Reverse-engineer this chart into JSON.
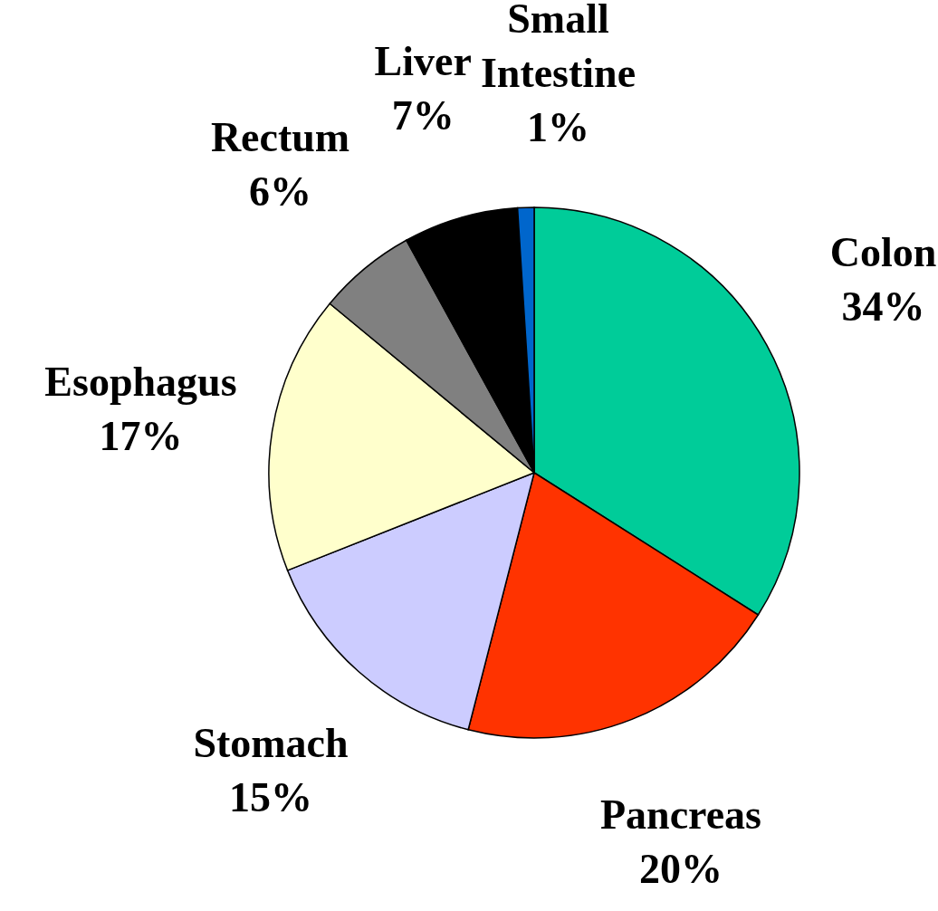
{
  "chart_data": {
    "type": "pie",
    "categories": [
      "Colon",
      "Pancreas",
      "Stomach",
      "Esophagus",
      "Rectum",
      "Liver",
      "Small Intestine"
    ],
    "values": [
      34,
      20,
      15,
      17,
      6,
      7,
      1
    ],
    "colors": [
      "#00cc99",
      "#ff3300",
      "#ccccff",
      "#ffffcc",
      "#808080",
      "#000000",
      "#0066cc"
    ],
    "value_labels": [
      "34%",
      "20%",
      "15%",
      "17%",
      "6%",
      "7%",
      "1%"
    ]
  }
}
